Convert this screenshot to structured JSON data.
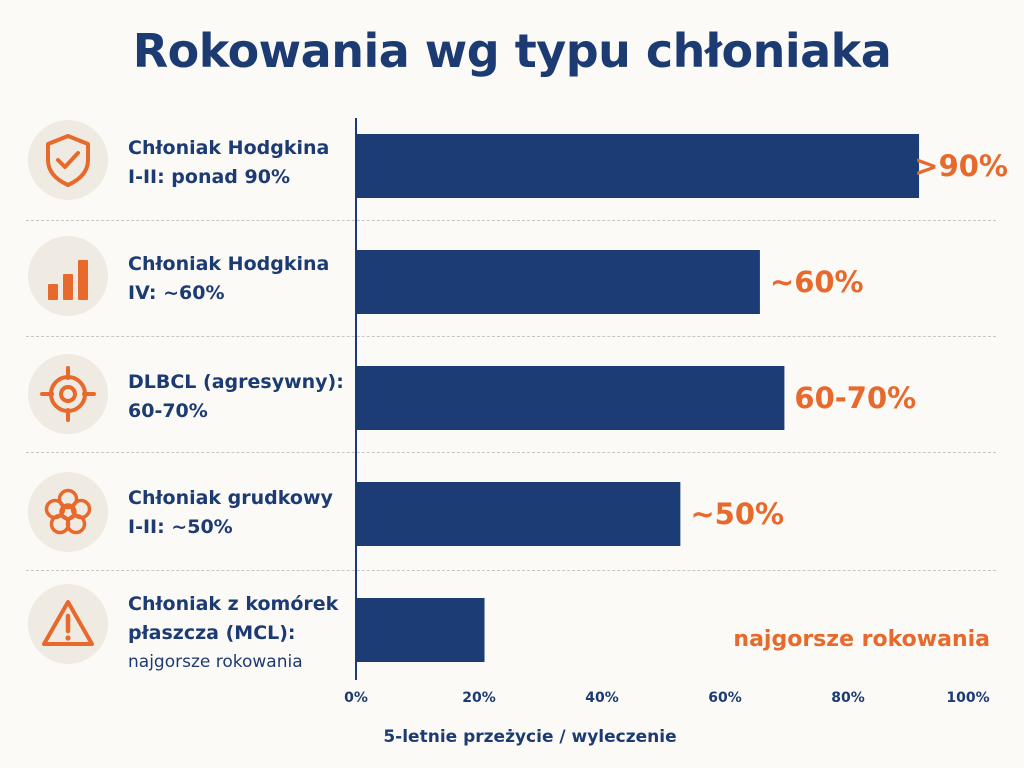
{
  "title": "Rokowania wg typu chłoniaka",
  "colors": {
    "bar": "#1b3c74",
    "accent": "#e8692c",
    "text": "#1c3b72",
    "icon_bg": "#efebe3"
  },
  "rows": [
    {
      "line1": "Chłoniak Hodgkina",
      "line2": "I-II: ponad 90%",
      "line3": "",
      "icon": "shield-check-icon"
    },
    {
      "line1": "Chłoniak Hodgkina",
      "line2": "IV: ~60%",
      "line3": "",
      "icon": "bar-chart-icon"
    },
    {
      "line1": "DLBCL (agresywny):",
      "line2": "60-70%",
      "line3": "",
      "icon": "target-icon"
    },
    {
      "line1": "Chłoniak grudkowy",
      "line2": "I-II: ~50%",
      "line3": "",
      "icon": "cell-cluster-icon"
    },
    {
      "line1": "Chłoniak z komórek",
      "line2": "płaszcza (MCL):",
      "line3": "najgorsze rokowania",
      "icon": "warning-icon"
    }
  ],
  "chart_data": {
    "type": "bar",
    "orientation": "horizontal",
    "categories": [
      "Chłoniak Hodgkina I-II",
      "Chłoniak Hodgkina IV",
      "DLBCL (agresywny)",
      "Chłoniak grudkowy I-II",
      "Chłoniak z komórek płaszcza (MCL)"
    ],
    "values": [
      92,
      66,
      70,
      53,
      21
    ],
    "value_labels": [
      ">90%",
      "~60%",
      "60-70%",
      "~50%",
      "najgorsze rokowania"
    ],
    "xlabel": "5-letnie przeżycie / wyleczenie",
    "ylabel": "",
    "xlim": [
      0,
      100
    ],
    "x_ticks": [
      "0%",
      "20%",
      "40%",
      "60%",
      "80%",
      "100%"
    ],
    "grid": false,
    "legend": "none"
  }
}
